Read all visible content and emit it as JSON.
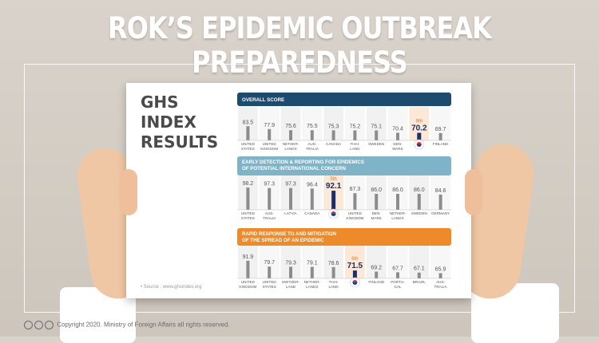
{
  "page": {
    "title": "ROK’S EPIDEMIC OUTBREAK PREPAREDNESS",
    "paper_heading": [
      "GHS",
      "INDEX",
      "RESULTS"
    ],
    "source": "• Source : www.ghsindex.org",
    "copyright": "Copyright 2020. Ministry of Foreign Affairs all rights reserved.",
    "cc_icons": [
      "cc",
      "by",
      "nc"
    ]
  },
  "colors": {
    "overall": "#1c4b6e",
    "detection": "#7fb3c8",
    "response": "#ef8a2b",
    "bar": "#8c8c8c",
    "highlight_bar": "#1c2f66",
    "highlight_bg": "#fbe8d8"
  },
  "chart_data": [
    {
      "type": "bar",
      "title": "OVERALL SCORE",
      "categories": [
        "UNITED STATES",
        "UNITED KINGDOM",
        "NETHER-LANDS",
        "AUS-TRALIA",
        "CANADA",
        "THAI-LAND",
        "SWEDEN",
        "DEN-MARK",
        "",
        "FINLAND"
      ],
      "values": [
        83.5,
        77.9,
        75.6,
        75.5,
        75.3,
        75.2,
        75.1,
        70.4,
        70.2,
        69.7
      ],
      "highlight": {
        "index": 8,
        "rank": "9th",
        "flag": "korea-flag"
      }
    },
    {
      "type": "bar",
      "title": "EARLY DETECTION & REPORTING FOR EPIDEMICS OF POTENTIAL INTERNATIONAL CONCERN",
      "categories": [
        "UNITED STATES",
        "AUS-TRALIA",
        "LATVIA",
        "CANADA",
        "",
        "UNITED KINGDOM",
        "DEN-MARK",
        "NETHER-LANDS",
        "SWEDEN",
        "GERMANY"
      ],
      "values": [
        98.2,
        97.3,
        97.3,
        96.4,
        92.1,
        87.3,
        86.0,
        86.0,
        86.0,
        84.6
      ],
      "highlight": {
        "index": 4,
        "rank": "5th",
        "flag": "korea-flag"
      }
    },
    {
      "type": "bar",
      "title": "RAPID RESPONSE TO AND MITIGATION OF THE SPREAD OF AN EPIDEMIC",
      "categories": [
        "UNITED KINGDOM",
        "UNITED STATES",
        "SWITZER-LAND",
        "NETHER-LANDS",
        "THAI-LAND",
        "",
        "FINLAND",
        "PORTU-GAL",
        "BRAZIL",
        "AUS-TRALIA"
      ],
      "values": [
        91.9,
        79.7,
        79.3,
        79.1,
        78.6,
        71.5,
        69.2,
        67.7,
        67.1,
        65.9
      ],
      "highlight": {
        "index": 5,
        "rank": "6th",
        "flag": "korea-flag"
      }
    }
  ]
}
